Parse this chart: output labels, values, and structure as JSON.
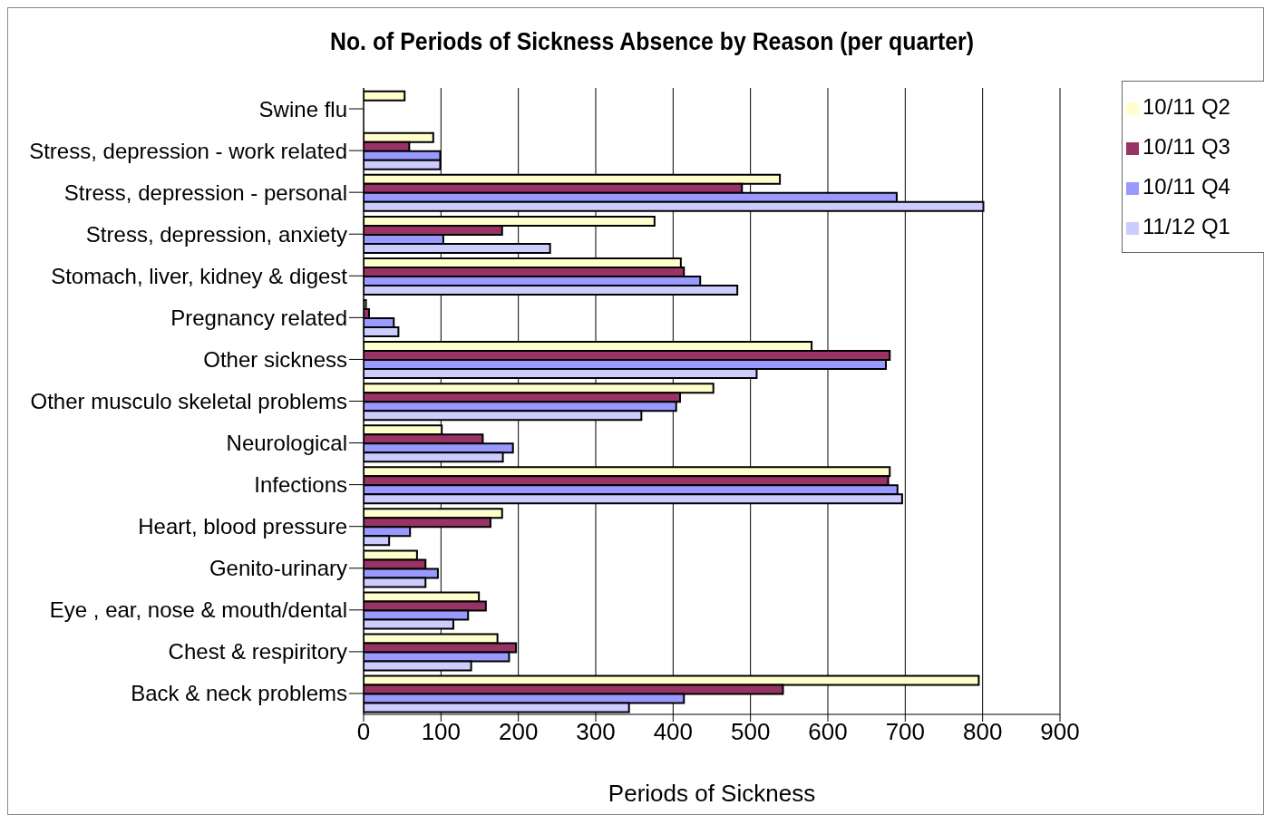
{
  "chart_data": {
    "type": "bar",
    "orientation": "horizontal",
    "title": "No. of Periods of Sickness Absence by Reason (per quarter)",
    "xlabel": "Periods of Sickness",
    "categories": [
      "Swine flu",
      "Stress, depression - work related",
      "Stress, depression - personal",
      "Stress, depression, anxiety",
      "Stomach, liver, kidney & digest",
      "Pregnancy related",
      "Other sickness",
      "Other musculo skeletal problems",
      "Neurological",
      "Infections",
      "Heart, blood pressure",
      "Genito-urinary",
      "Eye , ear, nose & mouth/dental",
      "Chest & respiritory",
      "Back & neck problems"
    ],
    "series": [
      {
        "name": "10/11 Q2",
        "color": "#ffffcc",
        "values": [
          53,
          90,
          538,
          376,
          410,
          3,
          579,
          452,
          101,
          680,
          179,
          69,
          149,
          173,
          795
        ]
      },
      {
        "name": "10/11 Q3",
        "color": "#993366",
        "values": [
          null,
          59,
          489,
          179,
          414,
          7,
          680,
          409,
          154,
          678,
          164,
          80,
          158,
          197,
          542
        ]
      },
      {
        "name": "10/11 Q4",
        "color": "#9999ff",
        "values": [
          null,
          99,
          689,
          103,
          435,
          39,
          675,
          404,
          193,
          690,
          60,
          96,
          135,
          188,
          414
        ]
      },
      {
        "name": "11/12 Q1",
        "color": "#ccccff",
        "values": [
          null,
          99,
          801,
          241,
          483,
          45,
          508,
          359,
          180,
          696,
          33,
          80,
          116,
          139,
          343
        ]
      }
    ],
    "xlim": [
      0,
      900
    ],
    "xticks": [
      0,
      100,
      200,
      300,
      400,
      500,
      600,
      700,
      800,
      900
    ],
    "grid": "x",
    "legend": "top right"
  }
}
